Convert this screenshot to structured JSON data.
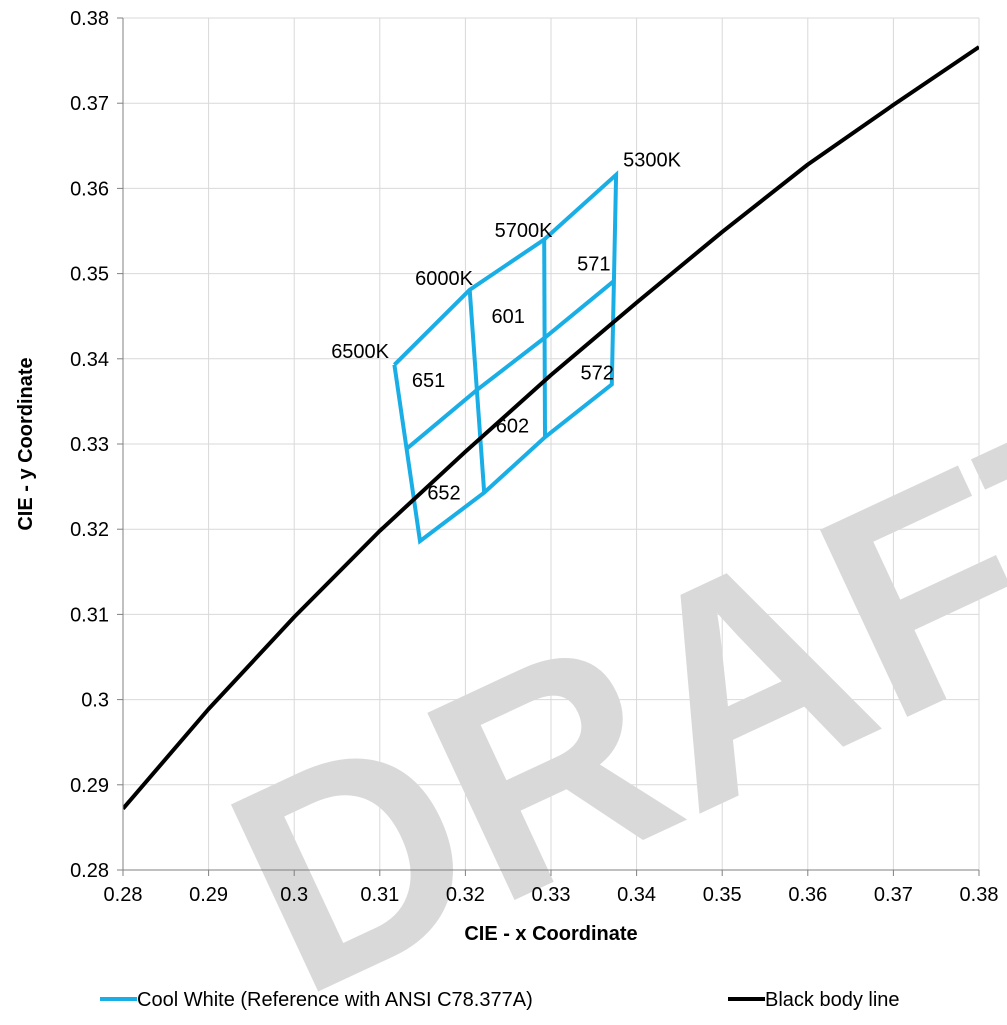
{
  "chart_data": {
    "type": "line",
    "xlabel": "CIE - x Coordinate",
    "ylabel": "CIE - y Coordinate",
    "xlim": [
      0.28,
      0.38
    ],
    "ylim": [
      0.28,
      0.38
    ],
    "x_ticks": [
      "0.28",
      "0.29",
      "0.3",
      "0.31",
      "0.32",
      "0.33",
      "0.34",
      "0.35",
      "0.36",
      "0.37",
      "0.38"
    ],
    "y_ticks": [
      "0.38",
      "0.37",
      "0.36",
      "0.35",
      "0.34",
      "0.33",
      "0.32",
      "0.31",
      "0.3",
      "0.29",
      "0.28"
    ],
    "x_tick_values": [
      0.28,
      0.29,
      0.3,
      0.31,
      0.32,
      0.33,
      0.34,
      0.35,
      0.36,
      0.37,
      0.38
    ],
    "y_tick_values": [
      0.38,
      0.37,
      0.36,
      0.35,
      0.34,
      0.33,
      0.32,
      0.31,
      0.3,
      0.29,
      0.28
    ],
    "grid": true,
    "legend_position": "bottom",
    "series": [
      {
        "name": "Cool White (Reference with ANSI C78.377A)",
        "color": "#1aaee6",
        "segments": [
          [
            [
              0.3117,
              0.3393
            ],
            [
              0.3205,
              0.3481
            ],
            [
              0.3292,
              0.354
            ],
            [
              0.3376,
              0.3616
            ],
            [
              0.3371,
              0.337
            ],
            [
              0.3293,
              0.3308
            ],
            [
              0.3222,
              0.3243
            ],
            [
              0.3147,
              0.3186
            ],
            [
              0.3117,
              0.3393
            ]
          ],
          [
            [
              0.3205,
              0.3481
            ],
            [
              0.3222,
              0.3243
            ]
          ],
          [
            [
              0.3292,
              0.354
            ],
            [
              0.3293,
              0.3308
            ]
          ],
          [
            [
              0.3132,
              0.3295
            ],
            [
              0.3213,
              0.3363
            ],
            [
              0.3293,
              0.3425
            ],
            [
              0.3373,
              0.3491
            ]
          ]
        ]
      },
      {
        "name": "Black body line",
        "color": "#000000",
        "x": [
          0.28,
          0.29,
          0.3,
          0.31,
          0.32,
          0.33,
          0.34,
          0.35,
          0.36,
          0.37,
          0.38
        ],
        "y": [
          0.2872,
          0.2989,
          0.3097,
          0.3198,
          0.3291,
          0.3381,
          0.3466,
          0.3549,
          0.3628,
          0.3698,
          0.3766
        ]
      }
    ],
    "annotations": [
      {
        "text": "5300K",
        "x": 0.3418,
        "y": 0.3634
      },
      {
        "text": "5700K",
        "x": 0.3268,
        "y": 0.3551
      },
      {
        "text": "6000K",
        "x": 0.3175,
        "y": 0.3495
      },
      {
        "text": "6500K",
        "x": 0.3077,
        "y": 0.3409
      },
      {
        "text": "571",
        "x": 0.335,
        "y": 0.3512
      },
      {
        "text": "601",
        "x": 0.325,
        "y": 0.345
      },
      {
        "text": "651",
        "x": 0.3157,
        "y": 0.3375
      },
      {
        "text": "572",
        "x": 0.3354,
        "y": 0.3384
      },
      {
        "text": "602",
        "x": 0.3255,
        "y": 0.3322
      },
      {
        "text": "652",
        "x": 0.3175,
        "y": 0.3243
      }
    ],
    "watermark": "DRAFT"
  }
}
